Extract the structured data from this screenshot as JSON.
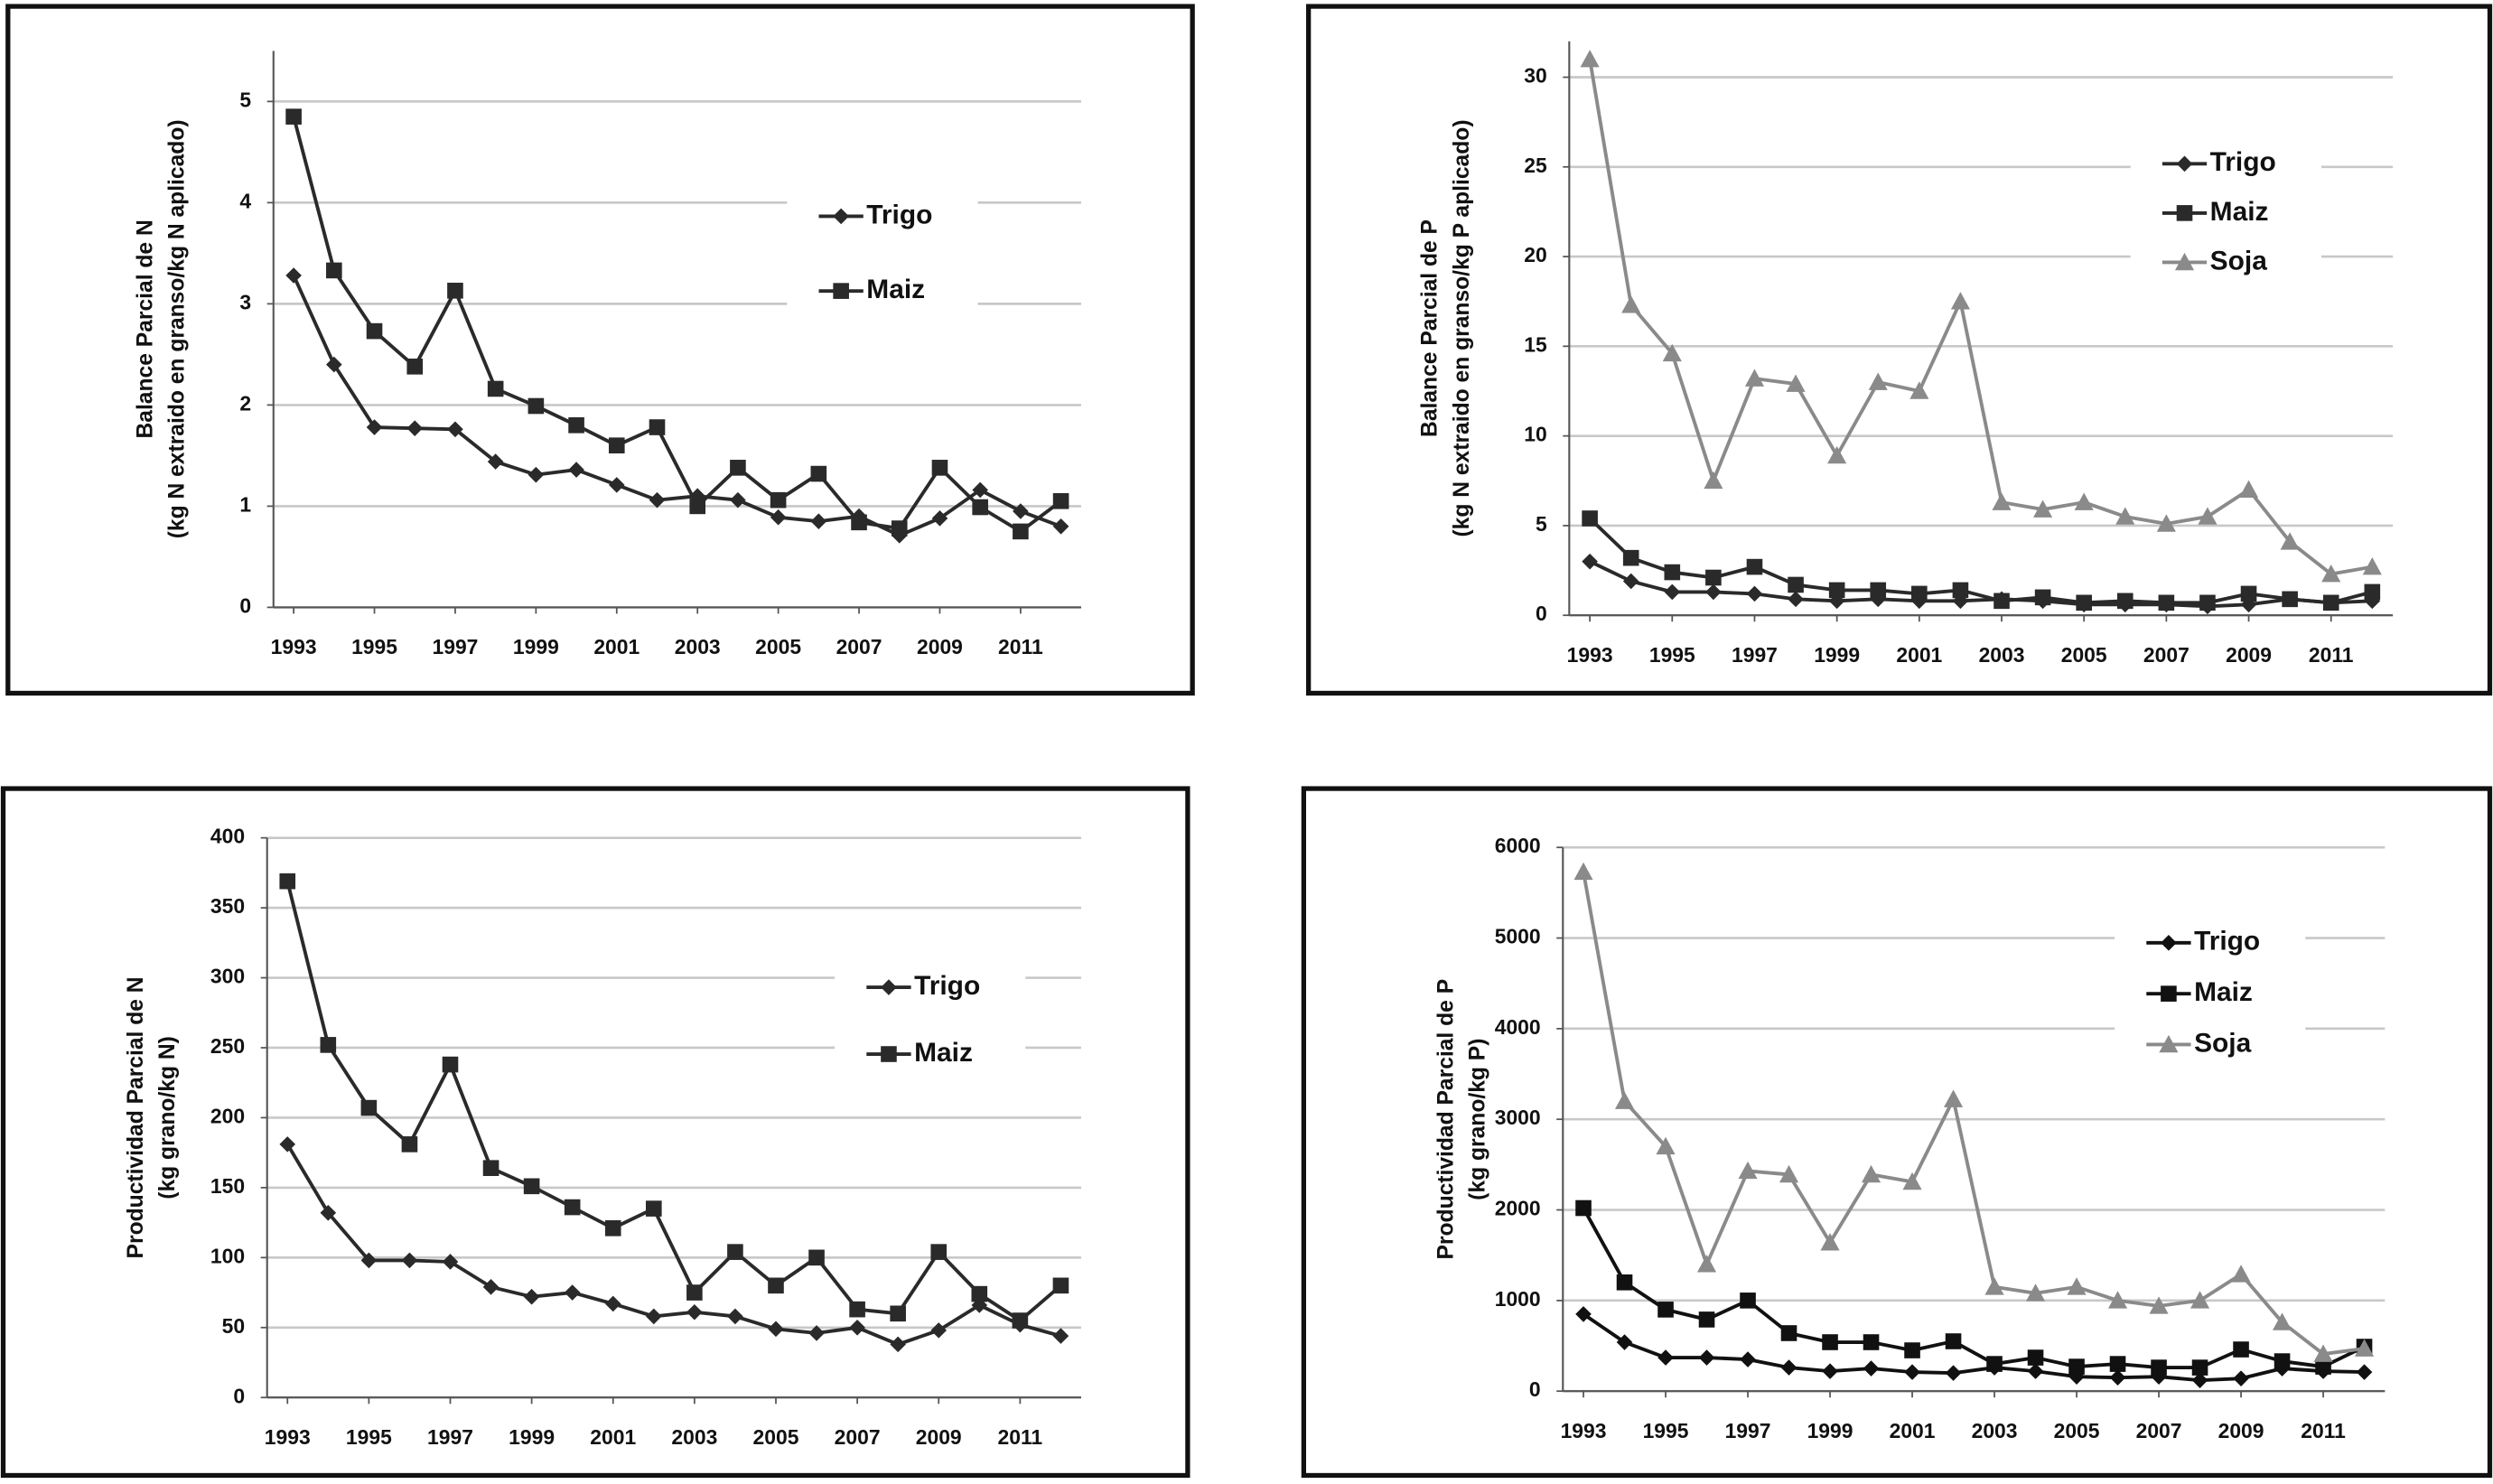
{
  "chart_data": [
    {
      "type": "line",
      "ylabel": [
        "Balance Parcial de N",
        "(kg N extraido en granso/kg N aplicado)"
      ],
      "x": [
        1993,
        1994,
        1995,
        1996,
        1997,
        1998,
        1999,
        2000,
        2001,
        2002,
        2003,
        2004,
        2005,
        2006,
        2007,
        2008,
        2009,
        2010,
        2011,
        2012
      ],
      "xlim": [
        1992.5,
        2012.5
      ],
      "xticks": [
        1993,
        1995,
        1997,
        1999,
        2001,
        2003,
        2005,
        2007,
        2009,
        2011
      ],
      "ylim": [
        0,
        5.5
      ],
      "yticks": [
        0,
        1,
        2,
        3,
        4,
        5
      ],
      "grid": true,
      "series": [
        {
          "name": "Trigo",
          "color": "#2a2a2a",
          "marker": "diamond",
          "values": [
            3.28,
            2.4,
            1.78,
            1.77,
            1.76,
            1.44,
            1.31,
            1.36,
            1.21,
            1.06,
            1.1,
            1.06,
            0.89,
            0.85,
            0.9,
            0.71,
            0.88,
            1.16,
            0.95,
            0.8
          ]
        },
        {
          "name": "Maiz",
          "color": "#2a2a2a",
          "marker": "square",
          "values": [
            4.85,
            3.33,
            2.73,
            2.38,
            3.13,
            2.16,
            1.99,
            1.8,
            1.6,
            1.78,
            1.0,
            1.38,
            1.06,
            1.32,
            0.84,
            0.78,
            1.38,
            0.99,
            0.75,
            1.05
          ]
        }
      ]
    },
    {
      "type": "line",
      "ylabel": [
        "Balance Parcial de P",
        "(kg N extraido en granso/kg P aplicado)"
      ],
      "x": [
        1993,
        1994,
        1995,
        1996,
        1997,
        1998,
        1999,
        2000,
        2001,
        2002,
        2003,
        2004,
        2005,
        2006,
        2007,
        2008,
        2009,
        2010,
        2011,
        2012
      ],
      "xlim": [
        1992.5,
        2012.5
      ],
      "xticks": [
        1993,
        1995,
        1997,
        1999,
        2001,
        2003,
        2005,
        2007,
        2009,
        2011
      ],
      "ylim": [
        0,
        32
      ],
      "yticks": [
        0,
        5,
        10,
        15,
        20,
        25,
        30
      ],
      "grid": true,
      "series": [
        {
          "name": "Trigo",
          "color": "#2a2a2a",
          "marker": "diamond",
          "values": [
            3.0,
            1.9,
            1.3,
            1.3,
            1.2,
            0.9,
            0.8,
            0.9,
            0.8,
            0.8,
            0.9,
            0.8,
            0.6,
            0.6,
            0.6,
            0.5,
            0.6,
            0.9,
            0.7,
            0.8
          ]
        },
        {
          "name": "Maiz",
          "color": "#2a2a2a",
          "marker": "square",
          "values": [
            5.4,
            3.2,
            2.4,
            2.1,
            2.7,
            1.7,
            1.4,
            1.4,
            1.2,
            1.4,
            0.8,
            1.0,
            0.7,
            0.8,
            0.7,
            0.7,
            1.2,
            0.9,
            0.7,
            1.3
          ]
        },
        {
          "name": "Soja",
          "color": "#8a8a8a",
          "marker": "triangle",
          "values": [
            31,
            17.3,
            14.6,
            7.5,
            13.2,
            12.9,
            8.9,
            13,
            12.5,
            17.5,
            6.3,
            5.9,
            6.3,
            5.5,
            5.1,
            5.5,
            7.0,
            4.1,
            2.3,
            2.7
          ]
        }
      ]
    },
    {
      "type": "line",
      "ylabel": [
        "Productividad Parcial de N",
        "(kg grano/kg N)"
      ],
      "x": [
        1993,
        1994,
        1995,
        1996,
        1997,
        1998,
        1999,
        2000,
        2001,
        2002,
        2003,
        2004,
        2005,
        2006,
        2007,
        2008,
        2009,
        2010,
        2011,
        2012
      ],
      "xlim": [
        1992.5,
        2012.5
      ],
      "xticks": [
        1993,
        1995,
        1997,
        1999,
        2001,
        2003,
        2005,
        2007,
        2009,
        2011
      ],
      "ylim": [
        0,
        400
      ],
      "yticks": [
        0,
        50,
        100,
        150,
        200,
        250,
        300,
        350,
        400
      ],
      "grid": true,
      "series": [
        {
          "name": "Trigo",
          "color": "#2a2a2a",
          "marker": "diamond",
          "values": [
            181,
            132,
            98,
            98,
            97,
            79,
            72,
            75,
            67,
            58,
            61,
            58,
            49,
            46,
            50,
            38,
            48,
            66,
            52,
            44
          ]
        },
        {
          "name": "Maiz",
          "color": "#2a2a2a",
          "marker": "square",
          "values": [
            369,
            252,
            207,
            181,
            238,
            164,
            151,
            136,
            121,
            135,
            75,
            104,
            80,
            100,
            63,
            60,
            104,
            74,
            55,
            80
          ]
        }
      ]
    },
    {
      "type": "line",
      "ylabel": [
        "Productividad Parcial de P",
        "(kg grano/kg P)"
      ],
      "x": [
        1993,
        1994,
        1995,
        1996,
        1997,
        1998,
        1999,
        2000,
        2001,
        2002,
        2003,
        2004,
        2005,
        2006,
        2007,
        2008,
        2009,
        2010,
        2011,
        2012
      ],
      "xlim": [
        1992.5,
        2012.5
      ],
      "xticks": [
        1993,
        1995,
        1997,
        1999,
        2001,
        2003,
        2005,
        2007,
        2009,
        2011
      ],
      "ylim": [
        0,
        6000
      ],
      "yticks": [
        0,
        1000,
        2000,
        3000,
        4000,
        5000,
        6000
      ],
      "grid": true,
      "series": [
        {
          "name": "Trigo",
          "color": "#111111",
          "marker": "diamond",
          "values": [
            850,
            540,
            370,
            370,
            350,
            260,
            220,
            250,
            210,
            200,
            260,
            220,
            160,
            150,
            160,
            120,
            140,
            250,
            220,
            210
          ]
        },
        {
          "name": "Maiz",
          "color": "#111111",
          "marker": "square",
          "values": [
            2020,
            1200,
            900,
            790,
            1000,
            640,
            540,
            540,
            450,
            550,
            300,
            370,
            270,
            300,
            260,
            260,
            460,
            330,
            270,
            490
          ]
        },
        {
          "name": "Soja",
          "color": "#8a8a8a",
          "marker": "triangle",
          "values": [
            5730,
            3200,
            2700,
            1400,
            2430,
            2390,
            1640,
            2390,
            2310,
            3220,
            1150,
            1080,
            1150,
            1000,
            940,
            1000,
            1290,
            760,
            410,
            470
          ]
        }
      ]
    }
  ]
}
